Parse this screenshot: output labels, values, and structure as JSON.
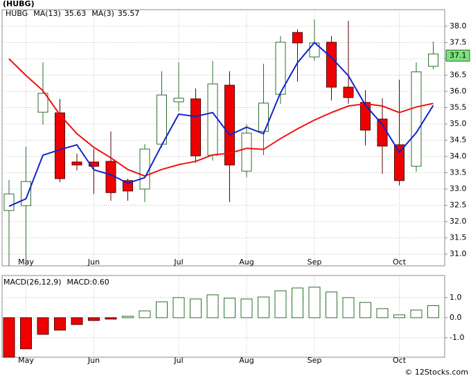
{
  "chart_data": [
    {
      "type": "candlestick",
      "title": "(HUBG)",
      "ticker": "HUBG",
      "categories": [
        null,
        "May",
        null,
        null,
        null,
        "Jun",
        null,
        null,
        null,
        null,
        "Jul",
        null,
        null,
        null,
        "Aug",
        null,
        null,
        null,
        "Sep",
        null,
        null,
        null,
        null,
        "Oct",
        null,
        null
      ],
      "open": [
        32.34,
        32.49,
        35.36,
        35.34,
        33.83,
        33.83,
        33.85,
        33.26,
        33.0,
        34.38,
        35.68,
        35.77,
        34.04,
        36.19,
        33.55,
        34.77,
        35.91,
        37.81,
        37.06,
        37.51,
        36.13,
        35.66,
        35.15,
        34.36,
        33.7,
        36.77
      ],
      "high": [
        33.28,
        34.3,
        36.89,
        35.77,
        34.09,
        34.23,
        34.77,
        33.32,
        34.38,
        36.62,
        36.89,
        36.09,
        36.94,
        36.62,
        34.98,
        36.85,
        37.7,
        37.91,
        38.21,
        37.7,
        38.17,
        36.04,
        35.79,
        36.36,
        36.89,
        37.53
      ],
      "low": [
        30.64,
        30.64,
        34.98,
        33.21,
        33.57,
        32.85,
        32.64,
        32.64,
        32.6,
        34.28,
        35.4,
        33.81,
        33.87,
        32.6,
        33.36,
        34.04,
        35.62,
        36.3,
        36.94,
        35.72,
        35.62,
        34.34,
        33.47,
        33.11,
        33.53,
        36.68
      ],
      "close": [
        32.85,
        33.23,
        35.94,
        33.32,
        33.74,
        33.7,
        32.89,
        32.94,
        34.23,
        35.89,
        35.79,
        34.02,
        36.23,
        33.74,
        34.72,
        35.64,
        37.51,
        37.49,
        37.49,
        36.13,
        35.81,
        34.81,
        34.32,
        33.26,
        36.6,
        37.15
      ],
      "up_color": "#ffffff",
      "down_color": "#ee0000",
      "up_stroke": "#2a6e2a",
      "down_stroke": "#550000",
      "series": [
        {
          "name": "MA(13)",
          "latest": 35.63,
          "color": "#ee1111",
          "values": [
            37.0,
            36.49,
            36.02,
            35.28,
            34.7,
            34.28,
            33.96,
            33.6,
            33.4,
            33.6,
            33.75,
            33.85,
            34.05,
            34.1,
            34.25,
            34.22,
            34.55,
            34.85,
            35.12,
            35.35,
            35.55,
            35.62,
            35.55,
            35.35,
            35.52,
            35.63
          ]
        },
        {
          "name": "MA(3)",
          "latest": 35.57,
          "color": "#1122cc",
          "values": [
            32.47,
            32.7,
            34.04,
            34.21,
            34.36,
            33.59,
            33.44,
            33.18,
            33.35,
            34.35,
            35.3,
            35.23,
            35.35,
            34.66,
            34.9,
            34.7,
            35.96,
            36.88,
            37.5,
            37.04,
            36.48,
            35.58,
            34.98,
            34.13,
            34.73,
            35.57
          ]
        }
      ],
      "last_price": 37.1,
      "last_price_color": "#7ee07e",
      "ylim": [
        30.64,
        38.51
      ],
      "yticks": [
        {
          "value": 31,
          "label": "31.0"
        },
        31.5,
        {
          "value": 32,
          "label": "32.0"
        },
        32.5,
        {
          "value": 33,
          "label": "33.0"
        },
        33.5,
        {
          "value": 34,
          "label": "34.0"
        },
        34.5,
        {
          "value": 35,
          "label": "35.0"
        },
        35.5,
        {
          "value": 36,
          "label": "36.0"
        },
        36.5,
        {
          "value": 37,
          "label": "37.0"
        },
        37.5,
        {
          "value": 38,
          "label": "38.0"
        }
      ],
      "grid": true
    },
    {
      "type": "bar",
      "title": "MACD(26,12,9)",
      "indicator": "MACD:0.60",
      "categories": [
        null,
        "May",
        null,
        null,
        null,
        "Jun",
        null,
        null,
        null,
        null,
        "Jul",
        null,
        null,
        null,
        "Aug",
        null,
        null,
        null,
        "Sep",
        null,
        null,
        null,
        null,
        "Oct",
        null,
        null
      ],
      "values": [
        -1.97,
        -1.55,
        -0.83,
        -0.62,
        -0.34,
        -0.14,
        -0.07,
        0.07,
        0.34,
        0.79,
        1.0,
        0.93,
        1.14,
        0.97,
        0.93,
        1.03,
        1.34,
        1.48,
        1.52,
        1.28,
        1.0,
        0.76,
        0.45,
        0.14,
        0.38,
        0.6
      ],
      "up_color": "#ffffff",
      "up_stroke": "#2a6e2a",
      "down_color": "#ee0000",
      "down_stroke": "#550000",
      "ylim": [
        -1.97,
        2.1
      ],
      "yticks": [
        {
          "value": -1,
          "label": "-1.0"
        },
        {
          "value": 0,
          "label": "0.0"
        },
        {
          "value": 1,
          "label": "1.0"
        }
      ],
      "grid": true
    },
    {
      "type": "watermark",
      "text": "© 12Stocks.com"
    }
  ]
}
